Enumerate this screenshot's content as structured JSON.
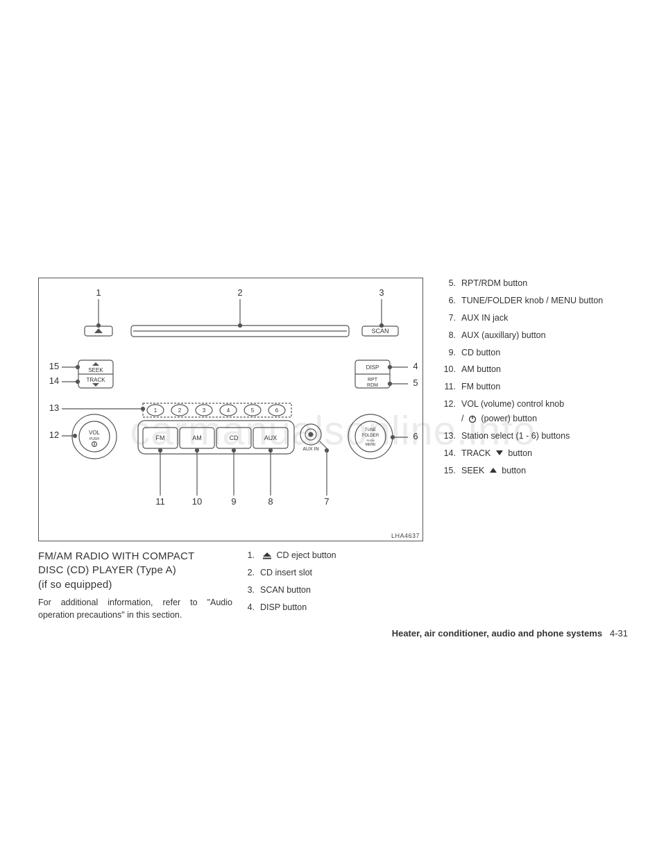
{
  "watermark": "carmanualsonline.info",
  "diagram": {
    "ref": "LHA4637",
    "callouts": [
      "1",
      "2",
      "3",
      "4",
      "5",
      "6",
      "7",
      "8",
      "9",
      "10",
      "11",
      "12",
      "13",
      "14",
      "15"
    ],
    "labels": {
      "seek": "SEEK",
      "track": "TRACK",
      "disp": "DISP",
      "rpt": "RPT",
      "rdm": "RDM",
      "scan": "SCAN",
      "vol": "VOL",
      "push": "PUSH",
      "tune": "TUNE",
      "folder": "FOLDER",
      "menu": "MENU",
      "fm": "FM",
      "am": "AM",
      "cd": "CD",
      "aux": "AUX",
      "auxin": "AUX IN",
      "presets": [
        "1",
        "2",
        "3",
        "4",
        "5",
        "6"
      ]
    }
  },
  "left": {
    "heading1": "FM/AM RADIO WITH COMPACT",
    "heading2": "DISC (CD) PLAYER (Type A)",
    "heading3": "(if so equipped)",
    "body": "For additional information, refer to \"Audio operation precautions\" in this section."
  },
  "midList": [
    {
      "n": "1.",
      "t": "CD eject button",
      "icon": "eject"
    },
    {
      "n": "2.",
      "t": "CD insert slot"
    },
    {
      "n": "3.",
      "t": "SCAN button"
    },
    {
      "n": "4.",
      "t": "DISP button"
    }
  ],
  "rightList": [
    {
      "n": "5.",
      "t": "RPT/RDM button"
    },
    {
      "n": "6.",
      "t": "TUNE/FOLDER knob / MENU button"
    },
    {
      "n": "7.",
      "t": "AUX IN jack"
    },
    {
      "n": "8.",
      "t": "AUX (auxillary) button"
    },
    {
      "n": "9.",
      "t": "CD button"
    },
    {
      "n": "10.",
      "t": "AM button"
    },
    {
      "n": "11.",
      "t": "FM button"
    },
    {
      "n": "12.",
      "t": "VOL (volume) control knob"
    },
    {
      "n": "",
      "t": "/        (power) button",
      "icon": "power",
      "sub": true
    },
    {
      "n": "13.",
      "t": "Station select (1 - 6) buttons"
    },
    {
      "n": "14.",
      "t": "TRACK        button",
      "icon": "down"
    },
    {
      "n": "15.",
      "t": "SEEK        button",
      "icon": "up"
    }
  ],
  "footer": {
    "section": "Heater, air conditioner, audio and phone systems",
    "page": "4-31"
  }
}
